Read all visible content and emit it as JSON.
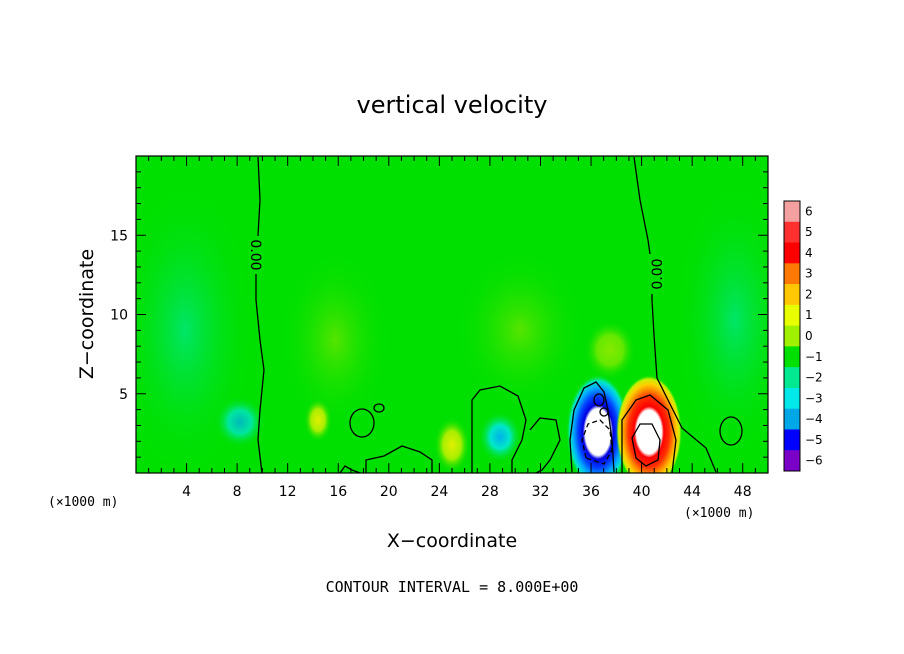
{
  "chart_data": {
    "type": "heatmap",
    "title": "vertical velocity",
    "xlabel": "X−coordinate",
    "ylabel": "Z−coordinate",
    "x_unit_label": "(×1000 m)",
    "xlim": [
      0,
      50
    ],
    "ylim": [
      0,
      20
    ],
    "x_ticks": [
      4,
      8,
      12,
      16,
      20,
      24,
      28,
      32,
      36,
      40,
      44,
      48
    ],
    "y_ticks": [
      5,
      10,
      15
    ],
    "contour_label": "0.00",
    "contour_interval_text": "CONTOUR INTERVAL = 8.000E+00",
    "colorbar": {
      "levels": [
        6,
        5,
        4,
        3,
        2,
        1,
        0,
        -1,
        -2,
        -3,
        -4,
        -5,
        -6
      ],
      "labels": [
        "6",
        "5",
        "4",
        "3",
        "2",
        "1",
        "0",
        "−1",
        "−2",
        "−3",
        "−4",
        "−5",
        "−6"
      ],
      "colors": [
        "#f4a0a0",
        "#ff3030",
        "#ff0000",
        "#ff7800",
        "#ffc800",
        "#e8ff00",
        "#a0f000",
        "#00e000",
        "#00e890",
        "#00e8e8",
        "#00a8e8",
        "#0000ff",
        "#7a00c8"
      ]
    },
    "features": [
      {
        "name": "updraft core",
        "x": 40,
        "z": 2.2,
        "value": 6
      },
      {
        "name": "downdraft core",
        "x": 36.5,
        "z": 2.0,
        "value": -6
      },
      {
        "name": "weak downdraft",
        "x": 29.5,
        "z": 2.3,
        "value": -2
      },
      {
        "name": "weak downdraft left",
        "x": 8.5,
        "z": 3.2,
        "value": -1.5
      },
      {
        "name": "weak updraft",
        "x": 14.5,
        "z": 3.3,
        "value": 1
      },
      {
        "name": "weak updraft",
        "x": 25,
        "z": 1.8,
        "value": 1
      }
    ]
  }
}
